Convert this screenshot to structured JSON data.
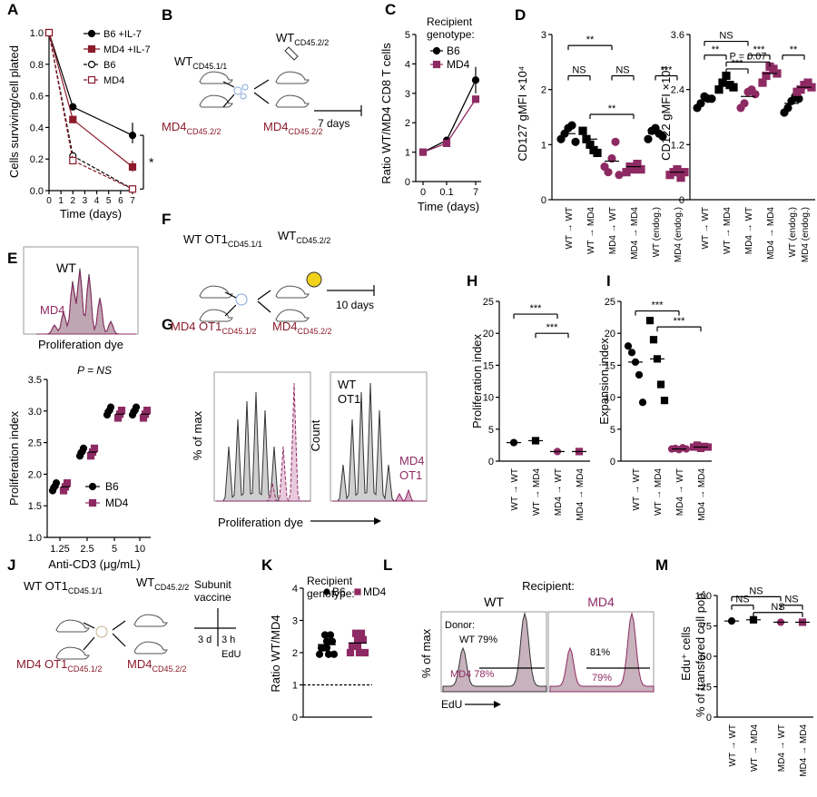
{
  "colors": {
    "black": "#000000",
    "maroon": "#8b1a2b",
    "magenta": "#8e2a63",
    "pink": "#d9a7c4",
    "gray": "#cfcfcf",
    "mauve": "#b79aa9",
    "mauve_fill": "#c8b2bd"
  },
  "panels": {
    "A": "A",
    "B": "B",
    "C": "C",
    "D": "D",
    "E": "E",
    "F": "F",
    "G": "G",
    "H": "H",
    "I": "I",
    "J": "J",
    "K": "K",
    "L": "L",
    "M": "M"
  },
  "schematics": {
    "b_wt": "WT",
    "b_wt_sub": "CD45.1/1",
    "b_wt2": "WT",
    "b_wt2_sub": "CD45.2/2",
    "b_md4": "MD4",
    "b_md4_sub": "CD45.2/2",
    "b_md4r": "MD4",
    "b_md4r_sub": "CD45.2/2",
    "b_days": "7 days",
    "f_wt": "WT OT1",
    "f_wt_sub": "CD45.1/1",
    "f_wt2": "WT",
    "f_wt2_sub": "CD45.2/2",
    "f_md4": "MD4 OT1",
    "f_md4_sub": "CD45.1/2",
    "f_md4r": "MD4",
    "f_md4r_sub": "CD45.2/2",
    "f_days": "10 days",
    "j_wt": "WT OT1",
    "j_wt_sub": "CD45.1/1",
    "j_wt2": "WT",
    "j_wt2_sub": "CD45.2/2",
    "j_md4": "MD4 OT1",
    "j_md4_sub": "CD45.1/2",
    "j_md4r": "MD4",
    "j_md4r_sub": "CD45.2/2",
    "j_vac1": "Subunit",
    "j_vac2": "vaccine",
    "j_3d": "3 d",
    "j_3h": "3 h",
    "j_edu": "EdU"
  },
  "chart_data": [
    {
      "panel": "A",
      "type": "line",
      "title": "",
      "xlabel": "Time (days)",
      "ylabel": "Cells surviving/cell plated",
      "x": [
        0,
        2,
        7
      ],
      "xlim": [
        0,
        7
      ],
      "ylim": [
        0,
        1.0
      ],
      "xticks": [
        "0",
        "1",
        "2",
        "3",
        "4",
        "5",
        "6",
        "7"
      ],
      "yticks": [
        "0.0",
        "0.2",
        "0.4",
        "0.6",
        "0.8",
        "1.0"
      ],
      "series": [
        {
          "name": "B6 +IL-7",
          "values": [
            1.0,
            0.53,
            0.35
          ]
        },
        {
          "name": "MD4 +IL-7",
          "values": [
            1.0,
            0.45,
            0.15
          ]
        },
        {
          "name": "B6",
          "values": [
            1.0,
            0.22,
            0.01
          ]
        },
        {
          "name": "MD4",
          "values": [
            1.0,
            0.19,
            0.01
          ]
        }
      ],
      "annotation": "*"
    },
    {
      "panel": "C",
      "type": "line",
      "xlabel": "Time (days)",
      "ylabel": "Ratio WT/MD4 CD8 T cells",
      "legend_title": [
        "Recipient",
        "genotype:"
      ],
      "categories": [
        "0",
        "0.1",
        "7"
      ],
      "ylim": [
        0,
        5
      ],
      "yticks": [
        "0",
        "1",
        "2",
        "3",
        "4",
        "5"
      ],
      "series": [
        {
          "name": "B6",
          "values": [
            1.0,
            1.4,
            3.45
          ]
        },
        {
          "name": "MD4",
          "values": [
            1.0,
            1.3,
            2.8
          ]
        }
      ]
    },
    {
      "panel": "D1",
      "type": "scatter",
      "ylabel": "CD127 gMFI ×10⁴",
      "ylim": [
        0,
        3
      ],
      "yticks": [
        "0",
        "1",
        "2",
        "3"
      ],
      "categories": [
        "WT → WT",
        "WT → MD4",
        "MD4 → WT",
        "MD4 → MD4",
        "WT (endog.)",
        "MD4 (endog.)"
      ],
      "means": [
        1.2,
        1.1,
        0.7,
        0.6,
        1.2,
        0.5
      ],
      "points": [
        [
          1.1,
          1.2,
          1.3,
          1.35,
          1.05
        ],
        [
          1.25,
          1.1,
          1.0,
          0.9,
          0.85
        ],
        [
          0.6,
          0.5,
          0.75,
          1.05,
          0.45
        ],
        [
          0.5,
          0.6,
          0.55,
          0.65,
          0.55
        ],
        [
          1.1,
          1.25,
          1.3,
          1.2,
          1.15
        ],
        [
          0.45,
          0.5,
          0.55,
          0.4,
          0.5
        ]
      ],
      "brackets": [
        "**",
        "NS",
        "NS",
        "**",
        "***"
      ]
    },
    {
      "panel": "D2",
      "type": "scatter",
      "ylabel": "CD122 gMFI ×10³",
      "ylim": [
        0,
        3.6
      ],
      "yticks": [
        "0",
        "1.2",
        "2.4",
        "3.6"
      ],
      "categories": [
        "WT → WT",
        "WT → MD4",
        "MD4 → WT",
        "MD4 → MD4",
        "WT (endog.)",
        "MD4 (endog.)"
      ],
      "means": [
        2.15,
        2.5,
        2.25,
        2.75,
        2.1,
        2.45
      ],
      "points": [
        [
          2.0,
          2.1,
          2.25,
          2.2,
          2.2
        ],
        [
          2.4,
          2.55,
          2.7,
          2.5,
          2.45
        ],
        [
          2.0,
          2.1,
          2.35,
          2.4,
          2.3
        ],
        [
          2.55,
          2.7,
          2.9,
          2.85,
          2.75
        ],
        [
          1.9,
          2.0,
          2.15,
          2.25,
          2.2
        ],
        [
          2.35,
          2.4,
          2.5,
          2.55,
          2.45
        ]
      ],
      "brackets": [
        "NS",
        "**",
        "P = 0.07",
        "***",
        "***",
        "**"
      ]
    },
    {
      "panel": "E_hist",
      "type": "area",
      "xlabel": "Proliferation dye",
      "labels": [
        "WT",
        "MD4"
      ]
    },
    {
      "panel": "E",
      "type": "scatter",
      "xlabel": "Anti-CD3 (μg/mL)",
      "ylabel": "Proliferation index",
      "ylim": [
        1.0,
        3.5
      ],
      "yticks": [
        "1.0",
        "1.5",
        "2.0",
        "2.5",
        "3.0",
        "3.5"
      ],
      "categories": [
        "1.25",
        "2.5",
        "5",
        "10"
      ],
      "series": [
        {
          "name": "B6",
          "values": [
            1.8,
            2.35,
            3.0,
            3.0
          ]
        },
        {
          "name": "MD4",
          "values": [
            1.8,
            2.35,
            2.95,
            2.95
          ]
        }
      ],
      "annotation": "P = NS"
    },
    {
      "panel": "G",
      "type": "area",
      "xlabel": "Proliferation dye",
      "ylabel_left": "% of max",
      "ylabel_right": "Count",
      "labels": [
        "WT",
        "OT1",
        "MD4",
        "OT1"
      ]
    },
    {
      "panel": "H",
      "type": "scatter",
      "ylabel": "Proliferation index",
      "ylim": [
        0,
        25
      ],
      "yticks": [
        "0",
        "5",
        "10",
        "15",
        "20",
        "25"
      ],
      "categories": [
        "WT → WT",
        "WT → MD4",
        "MD4 → WT",
        "MD4 → MD4"
      ],
      "means": [
        2.9,
        3.2,
        1.5,
        1.5
      ],
      "brackets": [
        "***",
        "***"
      ]
    },
    {
      "panel": "I",
      "type": "scatter",
      "ylabel": "Expansion index",
      "ylim": [
        0,
        25
      ],
      "yticks": [
        "0",
        "5",
        "10",
        "15",
        "20",
        "25"
      ],
      "categories": [
        "WT → WT",
        "WT → MD4",
        "MD4 → WT",
        "MD4 → MD4"
      ],
      "means": [
        15.5,
        16.0,
        1.9,
        2.2
      ],
      "points": [
        [
          18.0,
          17.0,
          15.5,
          13.5,
          9.2
        ],
        [
          22.0,
          19.0,
          16.0,
          12.0,
          9.5
        ],
        [
          1.9,
          2.0,
          1.8,
          2.1,
          1.9
        ],
        [
          2.2,
          2.5,
          2.0,
          2.3,
          2.2
        ]
      ],
      "brackets": [
        "***",
        "***"
      ]
    },
    {
      "panel": "K",
      "type": "scatter",
      "ylabel": "Ratio WT/MD4",
      "ylim": [
        0,
        4
      ],
      "yticks": [
        "0",
        "1",
        "2",
        "3",
        "4"
      ],
      "legend_title": [
        "Recipient",
        "genotype:"
      ],
      "series": [
        {
          "name": "B6",
          "values": [
            2.25
          ]
        },
        {
          "name": "MD4",
          "values": [
            2.3
          ]
        }
      ],
      "reference": 1
    },
    {
      "panel": "L",
      "type": "area",
      "title": "Recipient:",
      "columns": [
        "WT",
        "MD4"
      ],
      "ylabel": "% of max",
      "xlabel": "EdU",
      "donor_label": "Donor:",
      "wt_labels": [
        "WT 79%",
        "81%"
      ],
      "md4_labels": [
        "MD4 78%",
        "79%"
      ]
    },
    {
      "panel": "M",
      "type": "scatter",
      "ylabel": "Edu⁺ cells",
      "ylabel2": "% of transfered cell pop.",
      "ylim": [
        0,
        100
      ],
      "yticks": [
        "0",
        "25",
        "50",
        "75",
        "100"
      ],
      "categories": [
        "WT → WT",
        "WT → MD4",
        "MD4 → WT",
        "MD4 → MD4"
      ],
      "means": [
        79,
        80,
        78,
        78
      ],
      "brackets": [
        "NS",
        "NS",
        "NS",
        "NS"
      ]
    }
  ]
}
